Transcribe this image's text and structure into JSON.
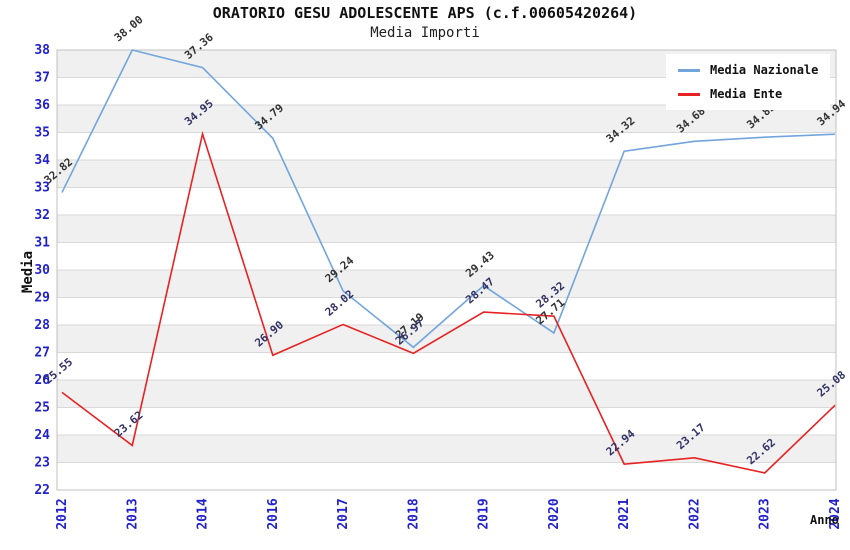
{
  "title": "ORATORIO GESU ADOLESCENTE APS (c.f.00605420264)",
  "subtitle": "Media Importi",
  "chart_data": {
    "type": "line",
    "categories": [
      "2012",
      "2013",
      "2014",
      "2016",
      "2017",
      "2018",
      "2019",
      "2020",
      "2021",
      "2022",
      "2023",
      "2024"
    ],
    "series": [
      {
        "name": "Media Nazionale",
        "color": "#72a5dc",
        "label_color": "#333333",
        "values": [
          32.82,
          38.0,
          37.36,
          34.79,
          29.24,
          27.19,
          29.43,
          27.71,
          34.32,
          34.68,
          34.83,
          34.94
        ]
      },
      {
        "name": "Media Ente",
        "color": "#e62222",
        "label_color": "#333366",
        "values": [
          25.55,
          23.62,
          34.95,
          26.9,
          28.02,
          26.97,
          28.47,
          28.32,
          22.94,
          23.17,
          22.62,
          25.08
        ]
      }
    ],
    "xlabel": "Anno",
    "ylabel": "Media",
    "ylim": [
      22,
      38
    ],
    "ytick_step": 1,
    "yticks": [
      22,
      23,
      24,
      25,
      26,
      27,
      28,
      29,
      30,
      31,
      32,
      33,
      34,
      35,
      36,
      37,
      38
    ],
    "grid": "horizontal-bands",
    "band_color": "#f0f0f0",
    "gridline_color": "#d9d9d9",
    "border_color": "#c0c0c0",
    "tick_label_color": "#2222cc",
    "legend_position": "top-right",
    "value_label_decimals": 2
  }
}
